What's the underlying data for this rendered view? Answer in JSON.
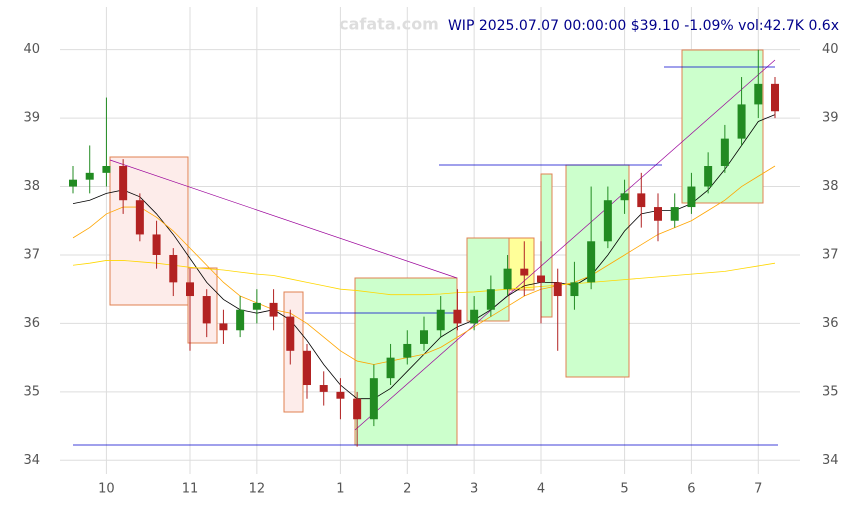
{
  "chart_data": {
    "type": "candlestick",
    "title": "WIP 2025.07.07 00:00:00 $39.10 -1.09% vol:42.7K 0.6x",
    "watermark": "cafata.com",
    "categories": [
      null,
      null,
      "10",
      null,
      null,
      null,
      null,
      "11",
      null,
      null,
      null,
      "12",
      null,
      null,
      null,
      null,
      "1",
      null,
      null,
      null,
      "2",
      null,
      null,
      null,
      "3",
      null,
      null,
      null,
      "4",
      null,
      null,
      null,
      null,
      "5",
      null,
      null,
      null,
      "6",
      null,
      null,
      null,
      "7",
      null
    ],
    "open": [
      38.0,
      38.1,
      38.2,
      38.3,
      37.8,
      37.3,
      37.0,
      36.6,
      36.4,
      36.0,
      35.9,
      36.2,
      36.3,
      36.1,
      35.6,
      35.1,
      35.0,
      34.9,
      34.6,
      35.2,
      35.5,
      35.7,
      35.9,
      36.2,
      36.0,
      36.2,
      36.5,
      36.8,
      36.7,
      36.6,
      36.4,
      36.6,
      37.2,
      37.8,
      37.9,
      37.7,
      37.5,
      37.7,
      38.0,
      38.3,
      38.7,
      39.2,
      39.5
    ],
    "high": [
      38.3,
      38.6,
      39.3,
      38.4,
      37.9,
      37.5,
      37.1,
      36.8,
      36.5,
      36.2,
      36.4,
      36.5,
      36.5,
      36.2,
      35.7,
      35.3,
      35.2,
      35.0,
      35.4,
      35.7,
      35.9,
      36.1,
      36.4,
      36.5,
      36.4,
      36.7,
      37.0,
      37.2,
      37.2,
      36.8,
      36.9,
      38.0,
      38.0,
      38.1,
      38.2,
      37.9,
      37.9,
      38.2,
      38.5,
      38.9,
      39.6,
      40.0,
      39.6
    ],
    "low": [
      37.9,
      37.9,
      38.0,
      37.6,
      37.2,
      36.8,
      36.4,
      35.6,
      35.8,
      35.7,
      35.8,
      36.0,
      35.9,
      35.4,
      34.9,
      34.8,
      34.6,
      34.2,
      34.5,
      35.1,
      35.4,
      35.6,
      35.8,
      35.9,
      35.9,
      36.1,
      36.4,
      36.4,
      36.0,
      35.6,
      36.2,
      36.5,
      37.1,
      37.6,
      37.4,
      37.2,
      37.4,
      37.6,
      37.9,
      38.2,
      38.6,
      39.0,
      39.0
    ],
    "close": [
      38.1,
      38.2,
      38.3,
      37.8,
      37.3,
      37.0,
      36.6,
      36.4,
      36.0,
      35.9,
      36.2,
      36.3,
      36.1,
      35.6,
      35.1,
      35.0,
      34.9,
      34.6,
      35.2,
      35.5,
      35.7,
      35.9,
      36.2,
      36.0,
      36.2,
      36.5,
      36.8,
      36.7,
      36.6,
      36.4,
      36.6,
      37.2,
      37.8,
      37.9,
      37.7,
      37.5,
      37.7,
      38.0,
      38.3,
      38.7,
      39.2,
      39.5,
      39.1
    ],
    "up_color": "#228b22",
    "down_color": "#b22222",
    "lines": [
      {
        "color": "#000000",
        "values": [
          37.75,
          37.8,
          37.9,
          37.95,
          37.85,
          37.6,
          37.3,
          36.95,
          36.6,
          36.35,
          36.2,
          36.15,
          36.2,
          36.05,
          35.75,
          35.4,
          35.1,
          34.9,
          34.9,
          35.05,
          35.3,
          35.55,
          35.8,
          35.95,
          36.05,
          36.2,
          36.4,
          36.55,
          36.6,
          36.6,
          36.55,
          36.7,
          37.0,
          37.35,
          37.6,
          37.65,
          37.65,
          37.75,
          37.95,
          38.25,
          38.6,
          38.95,
          39.05
        ]
      },
      {
        "color": "#ffa500",
        "values": [
          37.25,
          37.4,
          37.6,
          37.7,
          37.7,
          37.55,
          37.35,
          37.1,
          36.85,
          36.6,
          36.4,
          36.3,
          36.2,
          36.15,
          36.0,
          35.8,
          35.6,
          35.45,
          35.4,
          35.45,
          35.5,
          35.55,
          35.65,
          35.8,
          35.95,
          36.1,
          36.25,
          36.4,
          36.5,
          36.55,
          36.6,
          36.7,
          36.85,
          37.0,
          37.15,
          37.3,
          37.4,
          37.5,
          37.65,
          37.8,
          38.0,
          38.15,
          38.3
        ]
      },
      {
        "color": "#ffd700",
        "values": [
          36.85,
          36.88,
          36.92,
          36.92,
          36.9,
          36.88,
          36.85,
          36.82,
          36.8,
          36.78,
          36.75,
          36.72,
          36.7,
          36.65,
          36.6,
          36.55,
          36.5,
          36.48,
          36.45,
          36.42,
          36.42,
          36.42,
          36.43,
          36.45,
          36.46,
          36.48,
          36.5,
          36.52,
          36.54,
          36.56,
          36.58,
          36.6,
          36.62,
          36.64,
          36.66,
          36.68,
          36.7,
          36.72,
          36.74,
          36.76,
          36.8,
          36.84,
          36.88
        ]
      }
    ],
    "ylim": [
      33.8,
      40.55
    ],
    "yticks": [
      34,
      35,
      36,
      37,
      38,
      39,
      40
    ],
    "grid": true
  }
}
